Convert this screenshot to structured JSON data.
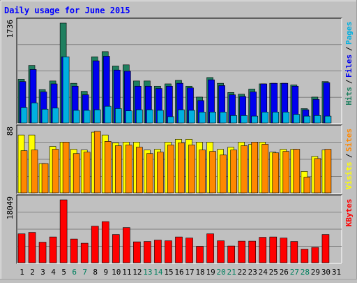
{
  "chart_data": [
    {
      "type": "bar",
      "title": "Daily usage for June 2015",
      "categories": [
        "1",
        "2",
        "3",
        "4",
        "5",
        "6",
        "7",
        "8",
        "9",
        "10",
        "11",
        "12",
        "13",
        "14",
        "15",
        "16",
        "17",
        "18",
        "19",
        "20",
        "21",
        "22",
        "23",
        "24",
        "25",
        "26",
        "27",
        "28",
        "29",
        "30",
        "31"
      ],
      "weekend_days": [
        "6",
        "7",
        "13",
        "14",
        "20",
        "21",
        "27",
        "28"
      ],
      "max_label": "1736",
      "ylim": [
        0,
        1736
      ],
      "ylabel": [
        "Pages",
        "Files",
        "Hits"
      ],
      "series": [
        {
          "name": "Hits",
          "color": "#1f7f5f",
          "values": [
            760,
            1000,
            580,
            730,
            1736,
            690,
            550,
            1150,
            1240,
            990,
            1010,
            730,
            730,
            640,
            680,
            740,
            640,
            450,
            790,
            690,
            530,
            500,
            590,
            680,
            690,
            690,
            660,
            250,
            450,
            720,
            0
          ]
        },
        {
          "name": "Files",
          "color": "#0000ee",
          "values": [
            720,
            930,
            540,
            680,
            1150,
            640,
            490,
            1080,
            1160,
            920,
            900,
            640,
            640,
            600,
            640,
            690,
            610,
            390,
            750,
            650,
            490,
            460,
            540,
            680,
            690,
            690,
            640,
            230,
            410,
            700,
            0
          ]
        },
        {
          "name": "Pages",
          "color": "#00b0e0",
          "values": [
            270,
            350,
            240,
            260,
            1150,
            220,
            220,
            230,
            290,
            250,
            210,
            230,
            230,
            220,
            110,
            230,
            220,
            190,
            190,
            190,
            130,
            130,
            120,
            190,
            190,
            190,
            150,
            120,
            130,
            120,
            0
          ]
        }
      ]
    },
    {
      "type": "bar",
      "max_label": "88",
      "ylim": [
        0,
        88
      ],
      "ylabel": [
        "Sites",
        "Visits"
      ],
      "series": [
        {
          "name": "Visits",
          "color": "#ffff00",
          "values": [
            81,
            81,
            41,
            65,
            71,
            61,
            60,
            85,
            81,
            70,
            71,
            71,
            60,
            61,
            71,
            75,
            75,
            71,
            71,
            61,
            64,
            71,
            68,
            71,
            57,
            61,
            61,
            30,
            51,
            60,
            0
          ]
        },
        {
          "name": "Sites",
          "color": "#ff8800",
          "values": [
            59,
            60,
            41,
            61,
            71,
            55,
            57,
            86,
            72,
            66,
            67,
            64,
            55,
            57,
            67,
            70,
            67,
            60,
            58,
            53,
            60,
            66,
            71,
            68,
            56,
            58,
            61,
            22,
            48,
            61,
            0
          ]
        }
      ]
    },
    {
      "type": "bar",
      "max_label": "18049",
      "ylim": [
        0,
        18049
      ],
      "ylabel": "KBytes",
      "series": [
        {
          "name": "KBytes",
          "color": "#ff0000",
          "values": [
            8300,
            8700,
            5900,
            7400,
            18049,
            6800,
            5600,
            10500,
            11800,
            8100,
            10100,
            6000,
            6100,
            6500,
            6300,
            7400,
            7100,
            4700,
            8300,
            6300,
            4800,
            6200,
            6200,
            7300,
            7400,
            7100,
            6100,
            3900,
            4400,
            8100,
            0
          ]
        }
      ]
    }
  ],
  "colors": {
    "background": "#c0c0c0",
    "title": "#0000ff",
    "weekday_label": "#000000",
    "weekend_label": "#00805f",
    "grid": "#808080"
  }
}
